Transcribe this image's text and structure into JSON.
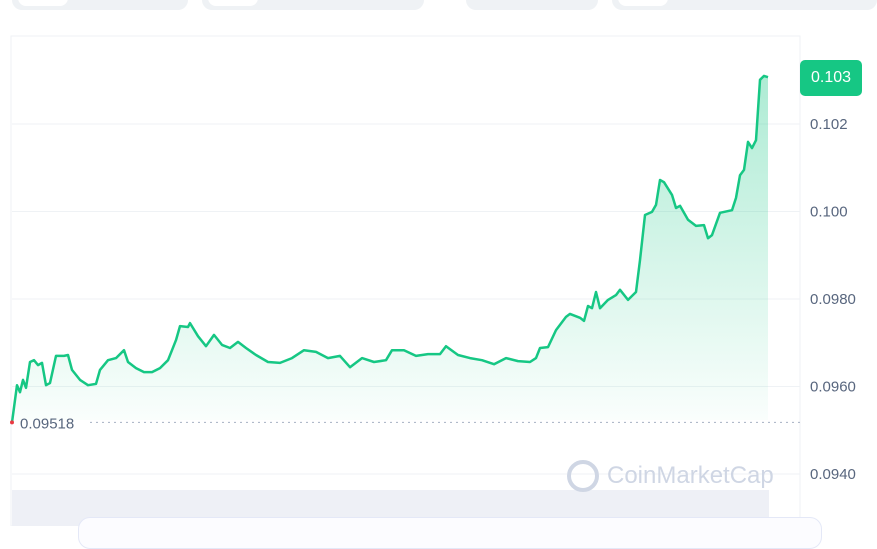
{
  "chart_data": {
    "type": "area",
    "title": "",
    "xlabel": "",
    "ylabel": "",
    "ylim": [
      0.093,
      0.104
    ],
    "yticks": [
      "0.102",
      "0.100",
      "0.0980",
      "0.0960",
      "0.0940"
    ],
    "ytick_values": [
      0.102,
      0.1,
      0.098,
      0.096,
      0.094
    ],
    "grid": true,
    "current_price_label": "0.103",
    "open_price_label": "0.09518",
    "open_price": 0.09518,
    "watermark": "CoinMarketCap",
    "colors": {
      "line": "#16c784",
      "badge": "#16c784",
      "grid": "#eff2f5",
      "axis_text": "#58667e",
      "open_dot": "#ea3943"
    },
    "series": [
      {
        "values": [
          0.09518,
          0.09569,
          0.09603,
          0.09587,
          0.09615,
          0.09597,
          0.09656,
          0.0966,
          0.09649,
          0.09654,
          0.09603,
          0.09608,
          0.0967,
          0.0967,
          0.09672,
          0.09638,
          0.09615,
          0.09603,
          0.09606,
          0.09638,
          0.0966,
          0.09665,
          0.09683,
          0.09656,
          0.09642,
          0.09633,
          0.09633,
          0.09642,
          0.0966,
          0.09683,
          0.09706,
          0.09738,
          0.09736,
          0.09745,
          0.09715,
          0.09692,
          0.09718,
          0.09695,
          0.09688,
          0.09702,
          0.09688,
          0.09672,
          0.09656,
          0.09654,
          0.09665,
          0.09683,
          0.09679,
          0.09665,
          0.0967,
          0.09644,
          0.09665,
          0.09656,
          0.0966,
          0.09683,
          0.09683,
          0.0967,
          0.09674,
          0.09674,
          0.09692,
          0.09672,
          0.09665,
          0.0966,
          0.09651,
          0.09665,
          0.09658,
          0.09656,
          0.09665,
          0.09688,
          0.0969,
          0.09729,
          0.09759,
          0.09766,
          0.09757,
          0.0975,
          0.09784,
          0.09779,
          0.09816,
          0.09779,
          0.09798,
          0.09809,
          0.09821,
          0.09798,
          0.09816,
          0.09889,
          0.09992,
          0.09999,
          0.10015,
          0.10072,
          0.10067,
          0.10038,
          0.10008,
          0.10013,
          0.09981,
          0.09967,
          0.09969,
          0.09939,
          0.09946,
          0.09997,
          0.10003,
          0.10031,
          0.10083,
          0.10095,
          0.10159,
          0.10145,
          0.10163,
          0.10301,
          0.1031,
          0.10307
        ]
      }
    ]
  }
}
